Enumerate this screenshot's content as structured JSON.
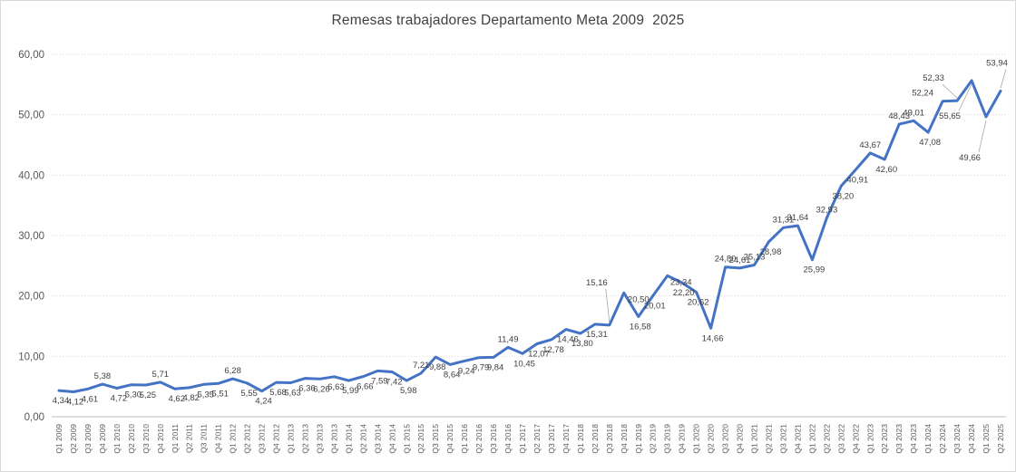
{
  "chart": {
    "title": "Remesas trabajadores Departamento Meta 2009  2025"
  },
  "chart_data": {
    "type": "line",
    "title": "Remesas trabajadores Departamento Meta 2009  2025",
    "categories": [
      "Q1 2009",
      "Q2 2009",
      "Q3 2009",
      "Q4 2009",
      "Q1 2010",
      "Q2 2010",
      "Q3 2010",
      "Q4 2010",
      "Q1 2011",
      "Q2 2011",
      "Q3 2011",
      "Q4 2011",
      "Q1 2012",
      "Q2 2012",
      "Q3 2012",
      "Q4 2012",
      "Q1 2013",
      "Q2 2013",
      "Q3 2013",
      "Q4 2013",
      "Q1 2014",
      "Q2 2014",
      "Q3 2014",
      "Q4 2014",
      "Q1 2015",
      "Q2 2015",
      "Q3 2015",
      "Q4 2015",
      "Q1 2016",
      "Q2 2016",
      "Q3 2016",
      "Q4 2016",
      "Q1 2017",
      "Q2 2017",
      "Q3 2017",
      "Q4 2017",
      "Q1 2018",
      "Q2 2018",
      "Q3 2018",
      "Q4 2018",
      "Q1 2019",
      "Q2 2019",
      "Q3 2019",
      "Q4 2019",
      "Q1 2020",
      "Q2 2020",
      "Q3 2020",
      "Q4 2020",
      "Q1 2021",
      "Q2 2021",
      "Q3 2021",
      "Q4 2021",
      "Q1 2022",
      "Q2 2022",
      "Q3 2022",
      "Q4 2022",
      "Q1 2023",
      "Q2 2023",
      "Q3 2023",
      "Q4 2023",
      "Q1 2024",
      "Q2 2024",
      "Q3 2024",
      "Q4 2024",
      "Q1 2025",
      "Q2 2025"
    ],
    "values": [
      4.34,
      4.12,
      4.61,
      5.38,
      4.72,
      5.3,
      5.25,
      5.71,
      4.62,
      4.82,
      5.35,
      5.51,
      6.28,
      5.55,
      4.24,
      5.68,
      5.63,
      6.36,
      6.26,
      6.63,
      5.99,
      6.66,
      7.59,
      7.42,
      5.98,
      7.21,
      9.88,
      8.64,
      9.24,
      9.79,
      9.84,
      11.49,
      10.45,
      12.07,
      12.78,
      14.46,
      13.8,
      15.31,
      15.16,
      20.5,
      16.58,
      20.01,
      23.34,
      22.2,
      20.62,
      14.66,
      24.8,
      24.61,
      25.13,
      28.98,
      31.31,
      31.64,
      25.99,
      32.93,
      38.2,
      40.91,
      43.67,
      42.6,
      48.43,
      49.01,
      47.08,
      52.24,
      52.33,
      55.65,
      49.66,
      53.94
    ],
    "ylim": [
      0,
      60
    ],
    "ytick_step": 10,
    "ytick_labels": [
      "0,00",
      "10,00",
      "20,00",
      "30,00",
      "40,00",
      "50,00",
      "60,00"
    ],
    "decimal_separator": ",",
    "grid": true,
    "legend": "none",
    "line_color": "#4472C4",
    "grid_color": "#D9D9D9",
    "axis_line_color": "#BFBFBF",
    "tick_label_color": "#595959",
    "data_label_color": "#404040",
    "leader_line_color": "#A6A6A6",
    "title_color": "#404040",
    "background_color": "#FFFFFF"
  }
}
